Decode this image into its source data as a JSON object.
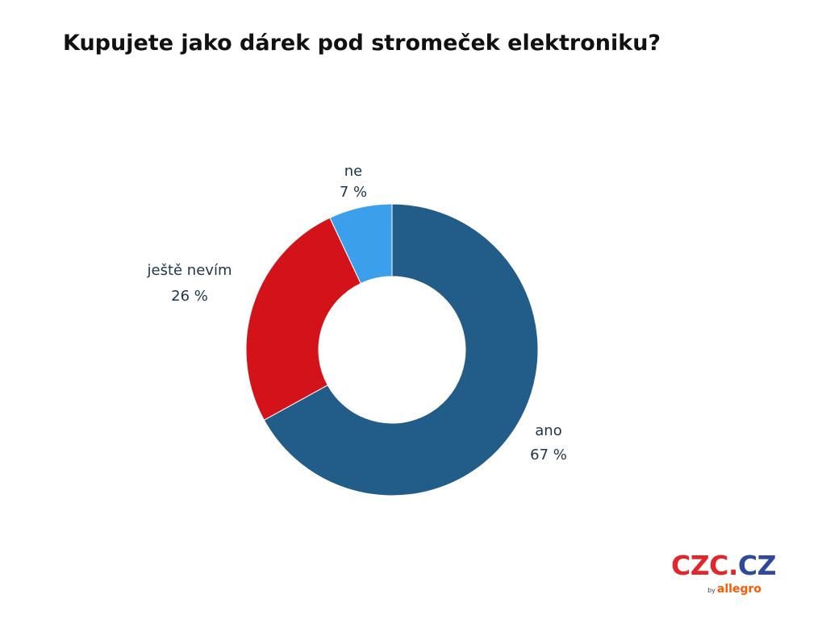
{
  "colors": {
    "ano": "#225d89",
    "jeste_nevim": "#d3121a",
    "ne": "#3b9fec",
    "text": "#1f3548",
    "brand_red": "#e1262d",
    "brand_blue": "#2d4b9a",
    "allegro_orange": "#ff5a00"
  },
  "chart_data": {
    "type": "pie",
    "title": "Kupujete jako dárek pod stromeček elektroniku?",
    "donut": true,
    "categories": [
      "ano",
      "ještě nevím",
      "ne"
    ],
    "values": [
      67,
      26,
      7
    ],
    "value_labels": [
      "67 %",
      "26 %",
      "7 %"
    ],
    "start": "top",
    "direction": "clockwise"
  },
  "logo": {
    "czc": "CZC",
    "dot": ".",
    "cz": "CZ",
    "by": "by",
    "allegro": "allegro"
  }
}
